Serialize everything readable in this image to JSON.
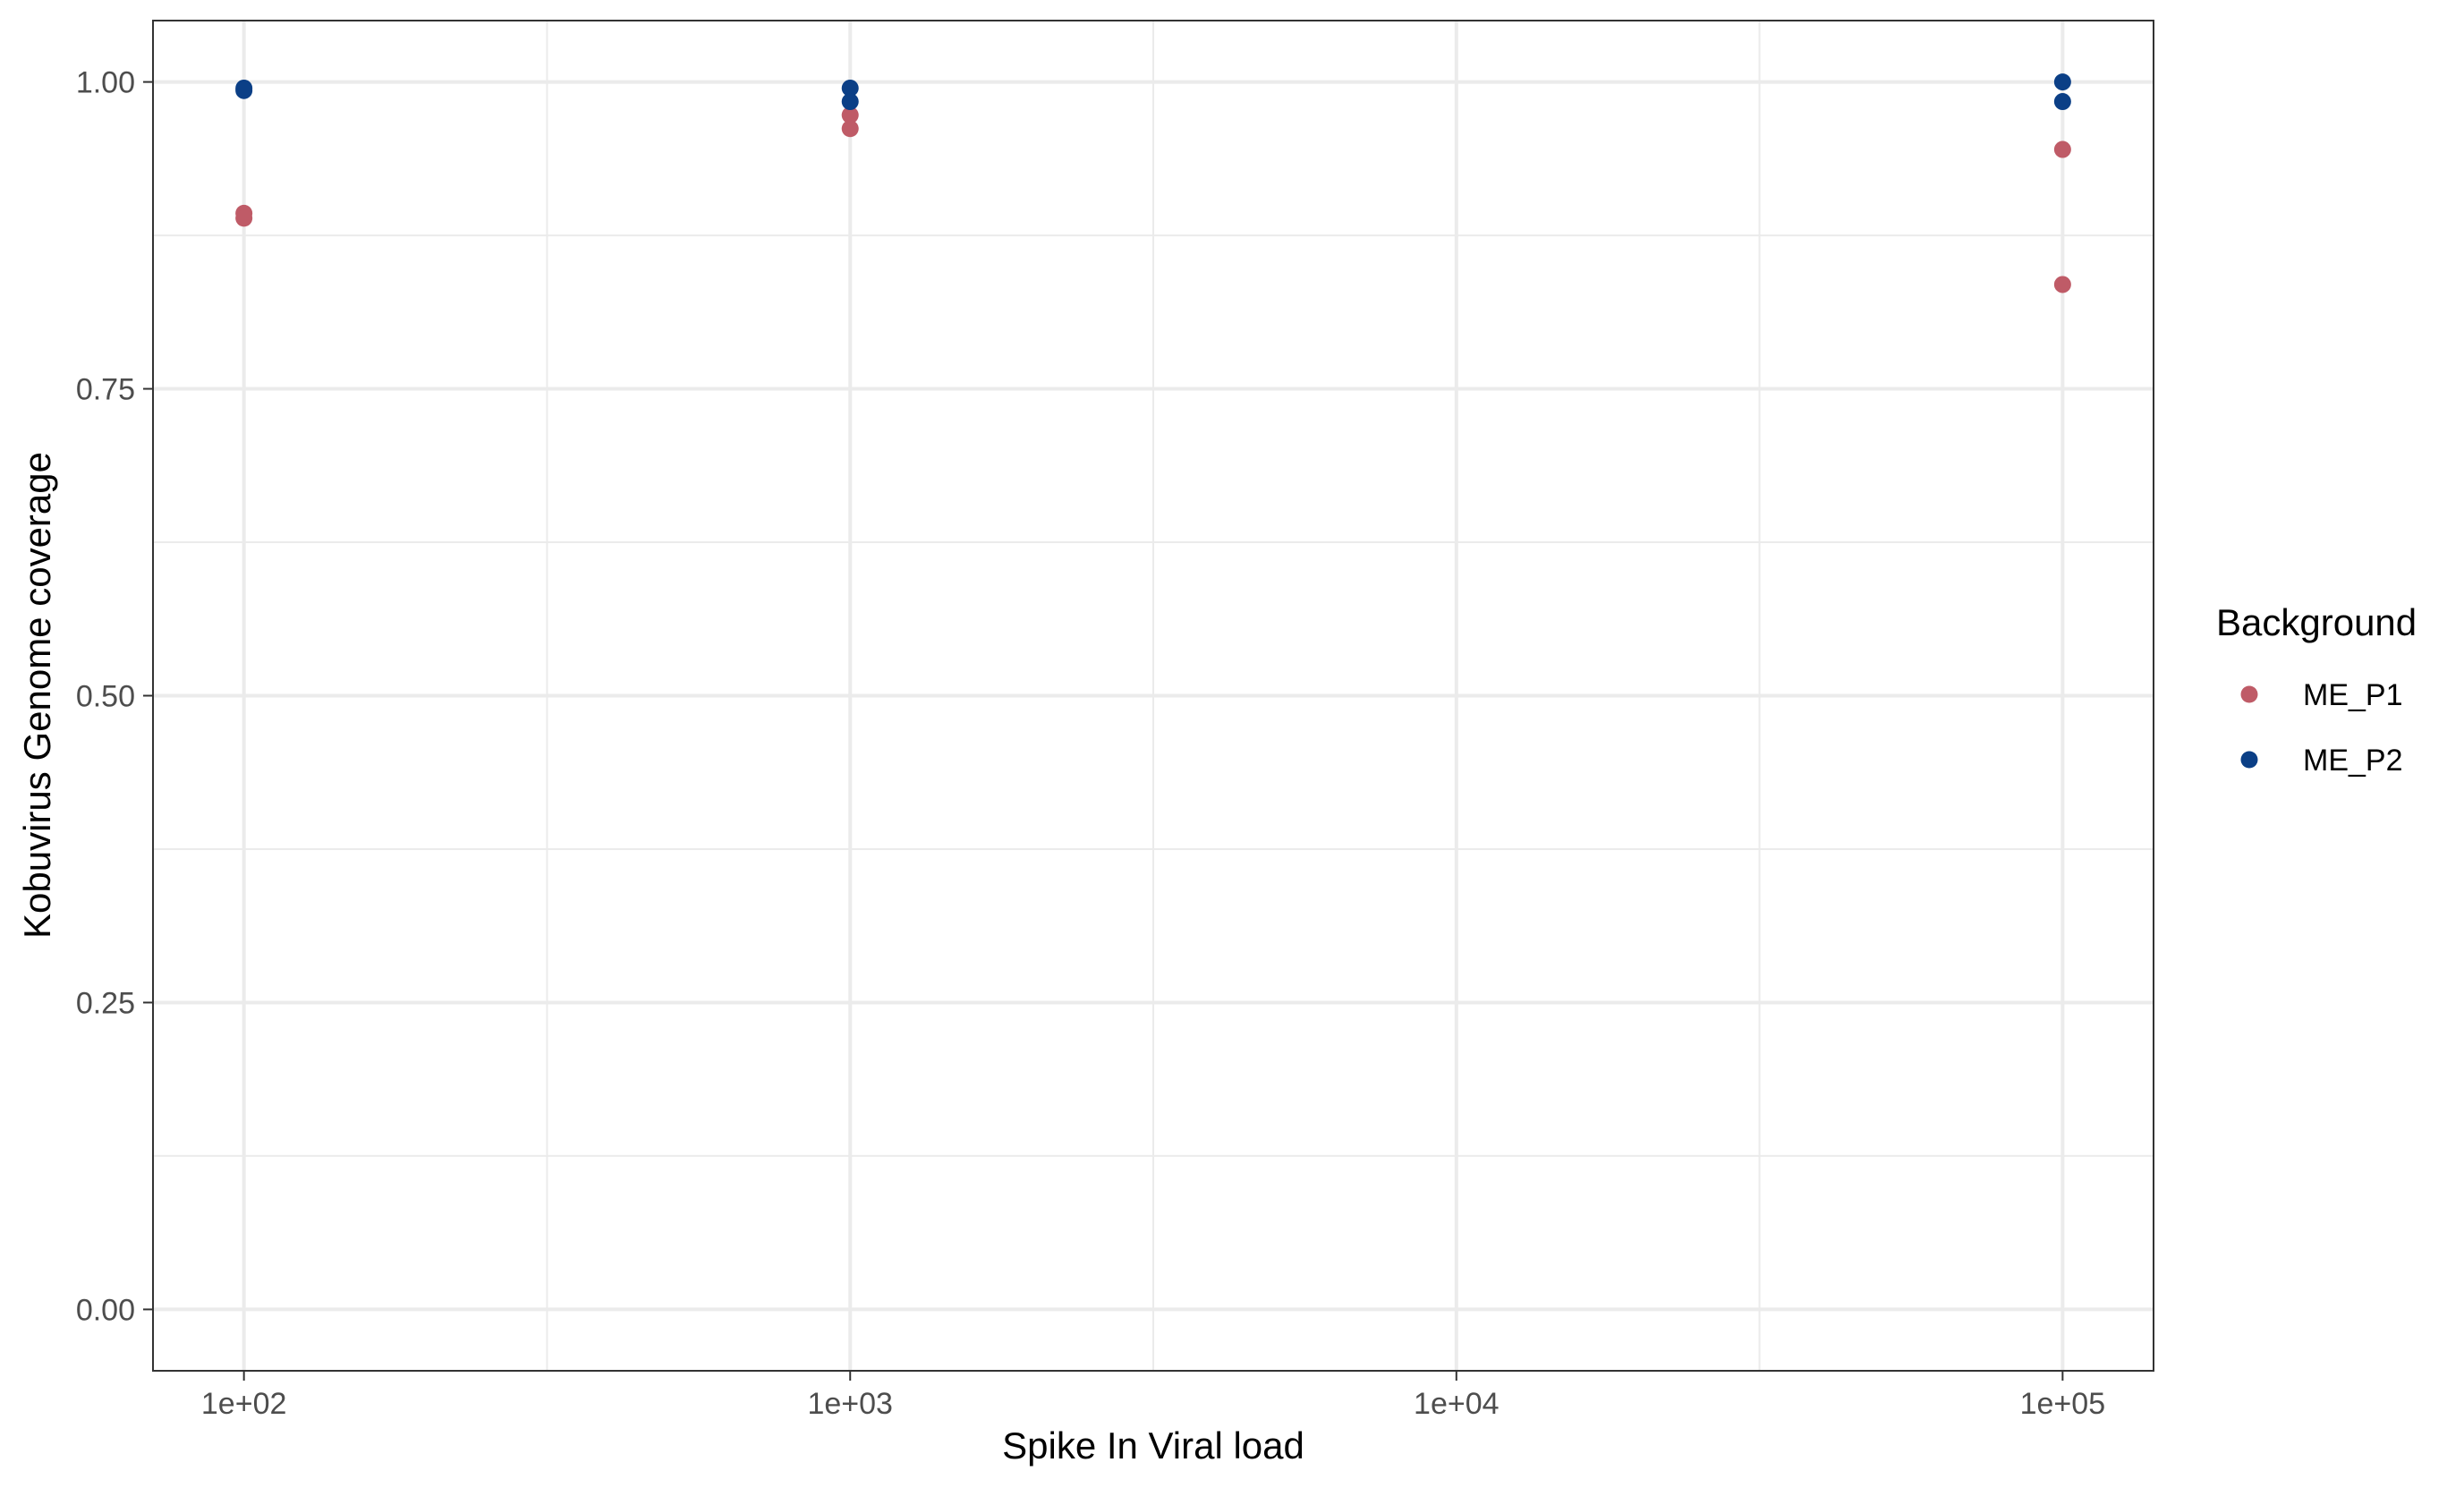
{
  "chart_data": {
    "type": "scatter",
    "xlabel": "Spike In Viral load",
    "ylabel": "Kobuvirus Genome coverage",
    "x_scale": "log10",
    "xlim": [
      70.79,
      141254
    ],
    "ylim": [
      -0.05,
      1.05
    ],
    "x_ticks": [
      100,
      1000,
      10000,
      100000
    ],
    "x_tick_labels": [
      "1e+02",
      "1e+03",
      "1e+04",
      "1e+05"
    ],
    "x_minor_ticks": [
      316.23,
      3162.28,
      31622.78
    ],
    "y_ticks": [
      0,
      0.25,
      0.5,
      0.75,
      1
    ],
    "y_tick_labels": [
      "0.00",
      "0.25",
      "0.50",
      "0.75",
      "1.00"
    ],
    "y_minor_ticks": [
      0.125,
      0.375,
      0.625,
      0.875
    ],
    "grid": true,
    "legend": {
      "title": "Background",
      "position": "right"
    },
    "series": [
      {
        "name": "ME_P1",
        "color": "#BF5B67",
        "points": [
          {
            "x": 100,
            "y": 0.893
          },
          {
            "x": 100,
            "y": 0.889
          },
          {
            "x": 1000,
            "y": 0.973
          },
          {
            "x": 1000,
            "y": 0.962
          },
          {
            "x": 100000,
            "y": 0.945
          },
          {
            "x": 100000,
            "y": 0.835
          }
        ]
      },
      {
        "name": "ME_P2",
        "color": "#0B3F86",
        "points": [
          {
            "x": 100,
            "y": 0.995
          },
          {
            "x": 100,
            "y": 0.993
          },
          {
            "x": 1000,
            "y": 0.995
          },
          {
            "x": 1000,
            "y": 0.984
          },
          {
            "x": 100000,
            "y": 1.0
          },
          {
            "x": 100000,
            "y": 0.984
          }
        ]
      }
    ]
  }
}
